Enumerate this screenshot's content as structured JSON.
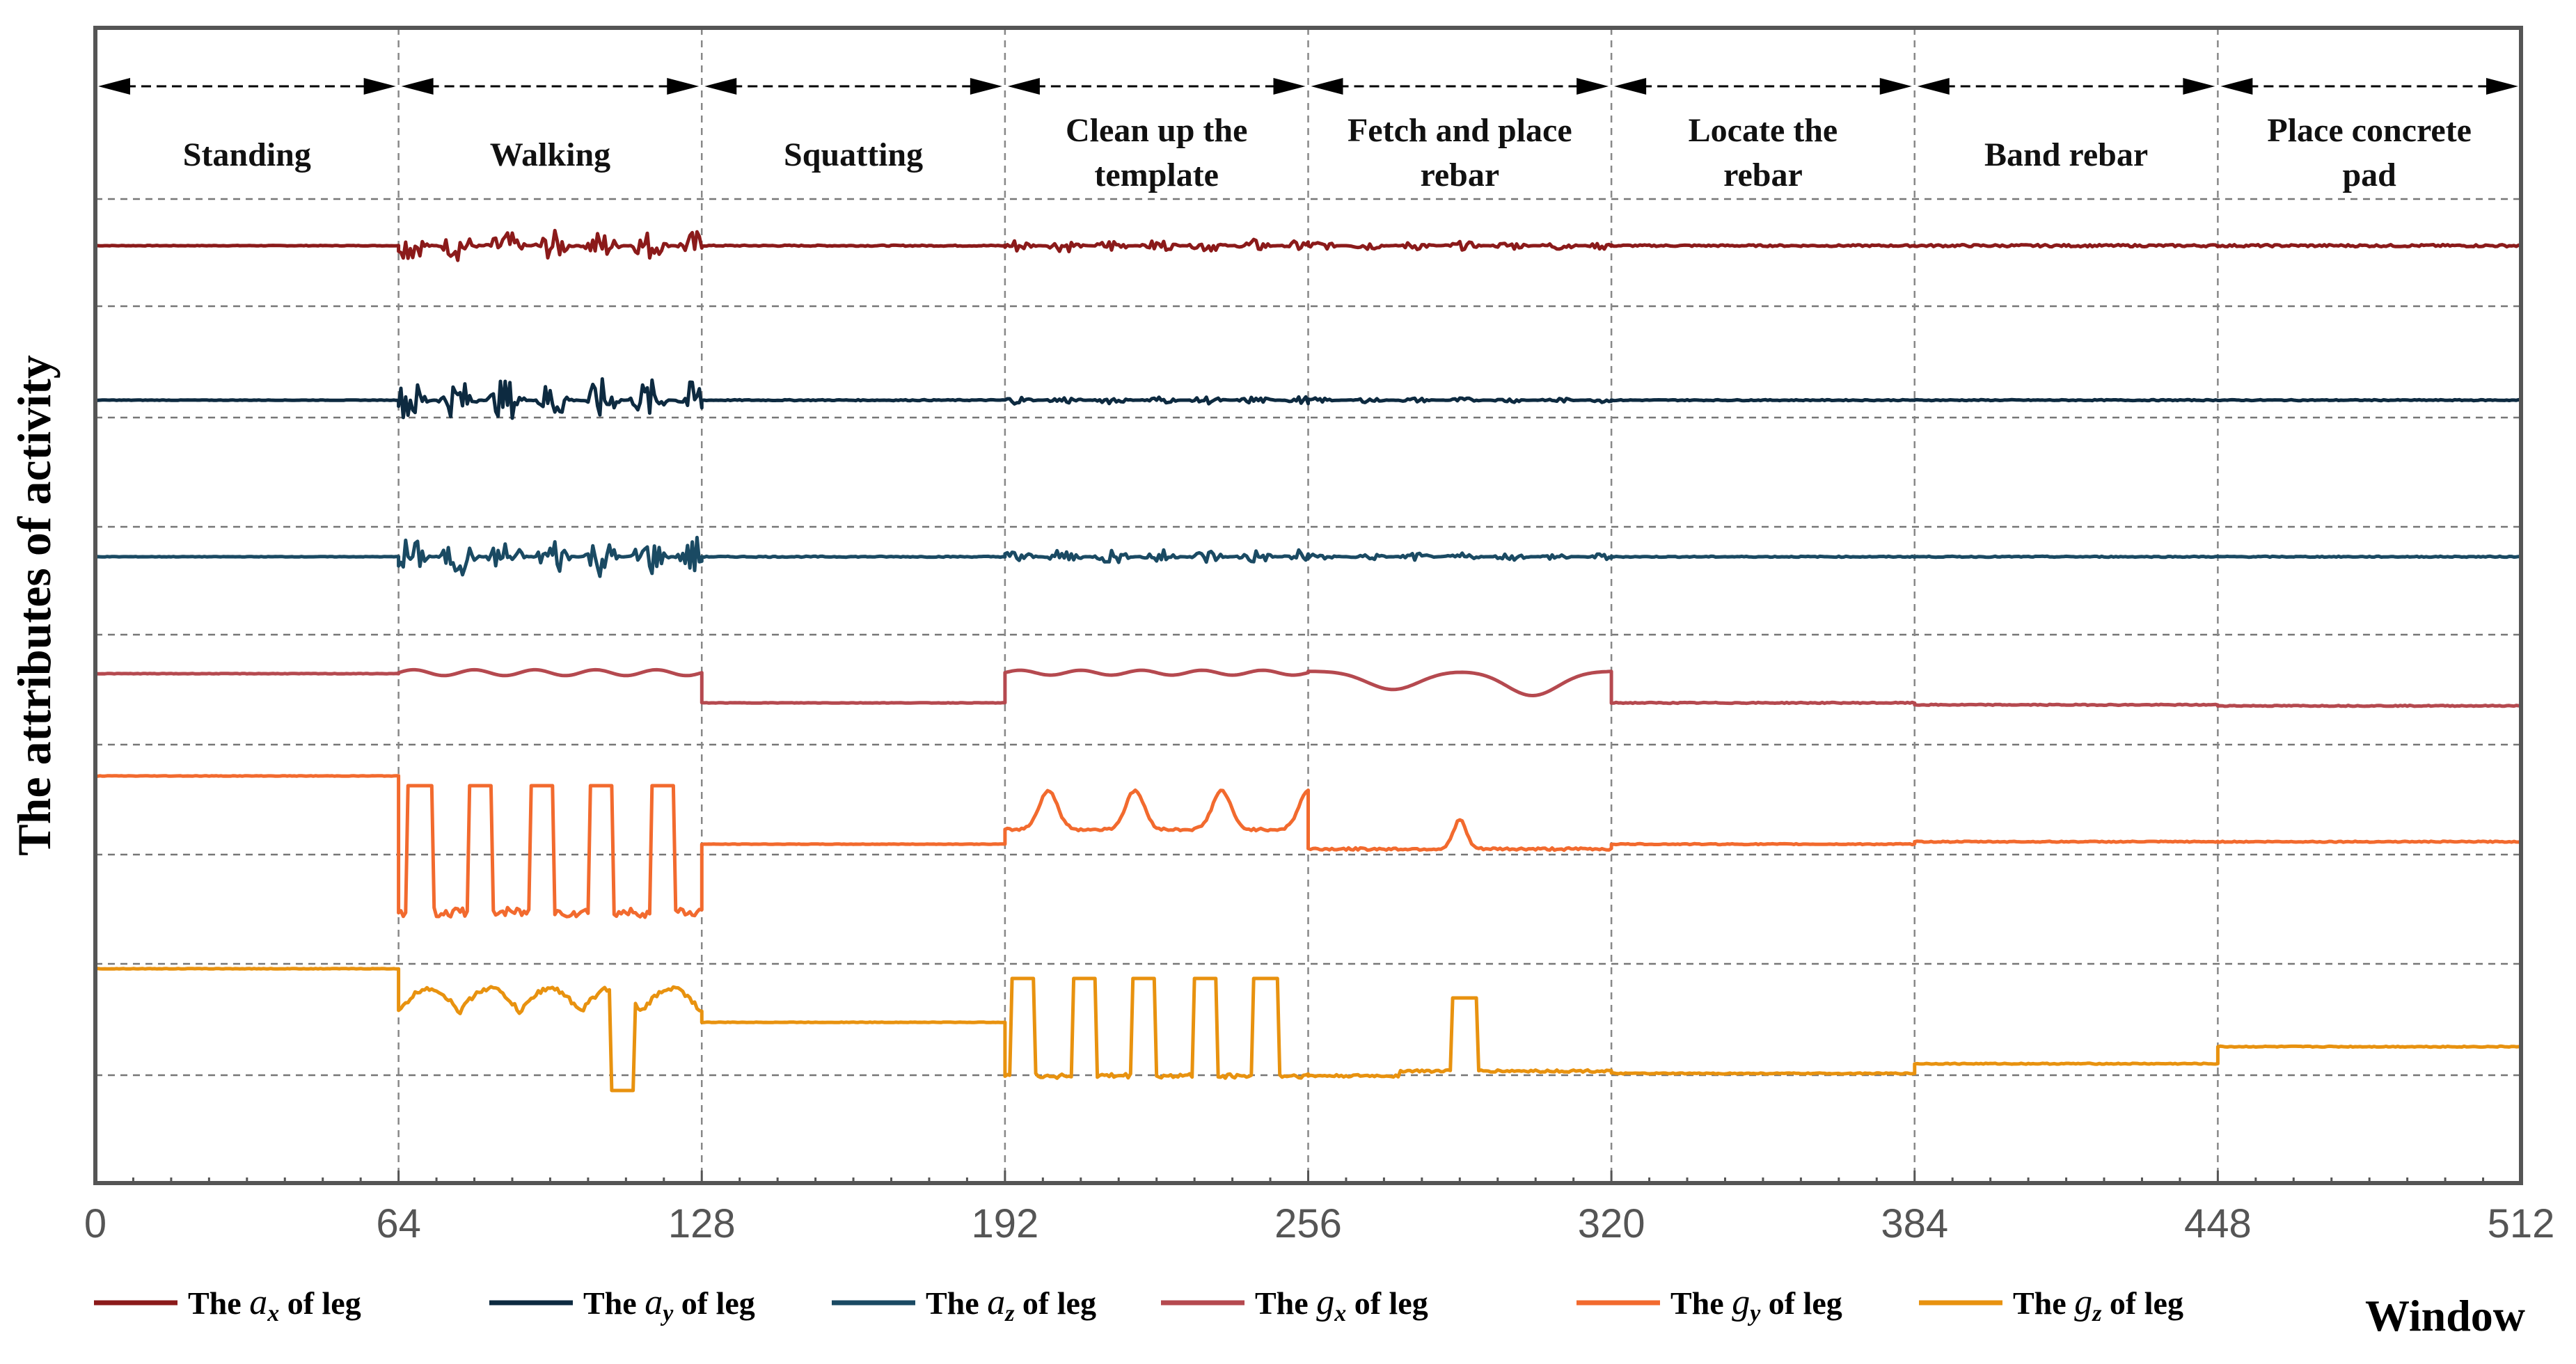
{
  "chart_data": {
    "type": "line",
    "title": "",
    "xlabel": "Window",
    "ylabel": "The attributes of activity",
    "xlim": [
      0,
      512
    ],
    "x_ticks": [
      "0",
      "64",
      "128",
      "192",
      "256",
      "320",
      "384",
      "448",
      "512"
    ],
    "phases": [
      {
        "start": 0,
        "end": 64,
        "label": [
          "Standing"
        ]
      },
      {
        "start": 64,
        "end": 128,
        "label": [
          "Walking"
        ]
      },
      {
        "start": 128,
        "end": 192,
        "label": [
          "Squatting"
        ]
      },
      {
        "start": 192,
        "end": 256,
        "label": [
          "Clean up the",
          "template"
        ]
      },
      {
        "start": 256,
        "end": 320,
        "label": [
          "Fetch and place",
          "rebar"
        ]
      },
      {
        "start": 320,
        "end": 384,
        "label": [
          "Locate the",
          "rebar"
        ]
      },
      {
        "start": 384,
        "end": 448,
        "label": [
          "Band rebar"
        ]
      },
      {
        "start": 448,
        "end": 512,
        "label": [
          "Place concrete",
          "pad"
        ]
      }
    ],
    "legend": {
      "prefix": "The",
      "suffix": "of  leg"
    },
    "series": [
      {
        "name": "The ax of leg",
        "symbol": "a",
        "sub": "x",
        "color": "#8B1A1A",
        "segments": [
          {
            "start": 0,
            "end": 64,
            "level": 0.0,
            "noise": 0.01,
            "kind": "flat"
          },
          {
            "start": 64,
            "end": 128,
            "level": 0.0,
            "noise": 0.28,
            "kind": "noisy"
          },
          {
            "start": 128,
            "end": 192,
            "level": 0.0,
            "noise": 0.02,
            "kind": "flat"
          },
          {
            "start": 192,
            "end": 256,
            "level": 0.0,
            "noise": 0.12,
            "kind": "noisy"
          },
          {
            "start": 256,
            "end": 320,
            "level": 0.0,
            "noise": 0.08,
            "kind": "noisy"
          },
          {
            "start": 320,
            "end": 384,
            "level": 0.0,
            "noise": 0.03,
            "kind": "flat"
          },
          {
            "start": 384,
            "end": 448,
            "level": 0.0,
            "noise": 0.04,
            "kind": "flat"
          },
          {
            "start": 448,
            "end": 512,
            "level": 0.0,
            "noise": 0.04,
            "kind": "flat"
          }
        ]
      },
      {
        "name": "The ay of leg",
        "symbol": "a",
        "sub": "y",
        "color": "#0D2A40",
        "segments": [
          {
            "start": 0,
            "end": 64,
            "level": 0.0,
            "noise": 0.01,
            "kind": "flat"
          },
          {
            "start": 64,
            "end": 128,
            "level": 0.0,
            "noise": 0.45,
            "kind": "noisy"
          },
          {
            "start": 128,
            "end": 192,
            "level": 0.0,
            "noise": 0.02,
            "kind": "flat"
          },
          {
            "start": 192,
            "end": 256,
            "level": 0.0,
            "noise": 0.08,
            "kind": "noisy"
          },
          {
            "start": 256,
            "end": 320,
            "level": 0.0,
            "noise": 0.05,
            "kind": "noisy"
          },
          {
            "start": 320,
            "end": 384,
            "level": 0.0,
            "noise": 0.02,
            "kind": "flat"
          },
          {
            "start": 384,
            "end": 448,
            "level": 0.0,
            "noise": 0.02,
            "kind": "flat"
          },
          {
            "start": 448,
            "end": 512,
            "level": 0.0,
            "noise": 0.02,
            "kind": "flat"
          }
        ]
      },
      {
        "name": "The az of leg",
        "symbol": "a",
        "sub": "z",
        "color": "#1A4A63",
        "segments": [
          {
            "start": 0,
            "end": 64,
            "level": 0.0,
            "noise": 0.01,
            "kind": "flat"
          },
          {
            "start": 64,
            "end": 128,
            "level": 0.0,
            "noise": 0.42,
            "kind": "noisy"
          },
          {
            "start": 128,
            "end": 192,
            "level": 0.0,
            "noise": 0.02,
            "kind": "flat"
          },
          {
            "start": 192,
            "end": 256,
            "level": 0.0,
            "noise": 0.16,
            "kind": "noisy"
          },
          {
            "start": 256,
            "end": 320,
            "level": 0.0,
            "noise": 0.08,
            "kind": "noisy"
          },
          {
            "start": 320,
            "end": 384,
            "level": 0.0,
            "noise": 0.02,
            "kind": "flat"
          },
          {
            "start": 384,
            "end": 448,
            "level": 0.0,
            "noise": 0.02,
            "kind": "flat"
          },
          {
            "start": 448,
            "end": 512,
            "level": 0.0,
            "noise": 0.02,
            "kind": "flat"
          }
        ]
      },
      {
        "name": "The gx of leg",
        "symbol": "g",
        "sub": "x",
        "color": "#B5494F",
        "segments": [
          {
            "start": 0,
            "end": 64,
            "level": 0.0,
            "noise": 0.01,
            "kind": "flat"
          },
          {
            "start": 64,
            "end": 128,
            "level": 0.02,
            "noise": 0.06,
            "kind": "wavy"
          },
          {
            "start": 128,
            "end": 192,
            "level": -0.6,
            "noise": 0.01,
            "kind": "flat"
          },
          {
            "start": 192,
            "end": 256,
            "level": 0.02,
            "noise": 0.05,
            "kind": "wavy"
          },
          {
            "start": 256,
            "end": 320,
            "level": 0.05,
            "noise": 0.5,
            "kind": "dips"
          },
          {
            "start": 320,
            "end": 384,
            "level": -0.6,
            "noise": 0.02,
            "kind": "flat"
          },
          {
            "start": 384,
            "end": 448,
            "level": -0.64,
            "noise": 0.02,
            "kind": "flat"
          },
          {
            "start": 448,
            "end": 512,
            "level": -0.66,
            "noise": 0.02,
            "kind": "flat"
          }
        ]
      },
      {
        "name": "The gy of leg",
        "symbol": "g",
        "sub": "y",
        "color": "#F26A2E",
        "segments": [
          {
            "start": 0,
            "end": 64,
            "level": 0.0,
            "noise": 0.01,
            "kind": "flat"
          },
          {
            "start": 64,
            "end": 128,
            "level": -2.5,
            "noise": 2.3,
            "kind": "pulses"
          },
          {
            "start": 128,
            "end": 192,
            "level": -1.4,
            "noise": 0.01,
            "kind": "flat"
          },
          {
            "start": 192,
            "end": 256,
            "level": -1.1,
            "noise": 0.8,
            "kind": "bumps"
          },
          {
            "start": 256,
            "end": 320,
            "level": -1.5,
            "noise": 0.6,
            "kind": "spike"
          },
          {
            "start": 320,
            "end": 384,
            "level": -1.4,
            "noise": 0.02,
            "kind": "flat"
          },
          {
            "start": 384,
            "end": 448,
            "level": -1.35,
            "noise": 0.02,
            "kind": "flat"
          },
          {
            "start": 448,
            "end": 512,
            "level": -1.35,
            "noise": 0.02,
            "kind": "flat"
          }
        ]
      },
      {
        "name": "The gz of leg",
        "symbol": "g",
        "sub": "z",
        "color": "#E8920F",
        "segments": [
          {
            "start": 0,
            "end": 64,
            "level": 0.0,
            "noise": 0.01,
            "kind": "flat"
          },
          {
            "start": 64,
            "end": 128,
            "level": -0.7,
            "noise": 1.9,
            "kind": "pulses2"
          },
          {
            "start": 128,
            "end": 192,
            "level": -1.1,
            "noise": 0.01,
            "kind": "flat"
          },
          {
            "start": 192,
            "end": 256,
            "level": -2.2,
            "noise": 2.0,
            "kind": "pulses3"
          },
          {
            "start": 256,
            "end": 320,
            "level": -2.2,
            "noise": 2.0,
            "kind": "spike2"
          },
          {
            "start": 320,
            "end": 384,
            "level": -2.15,
            "noise": 0.02,
            "kind": "flat"
          },
          {
            "start": 384,
            "end": 448,
            "level": -1.95,
            "noise": 0.02,
            "kind": "flat"
          },
          {
            "start": 448,
            "end": 512,
            "level": -1.6,
            "noise": 0.02,
            "kind": "flat"
          }
        ]
      }
    ]
  }
}
